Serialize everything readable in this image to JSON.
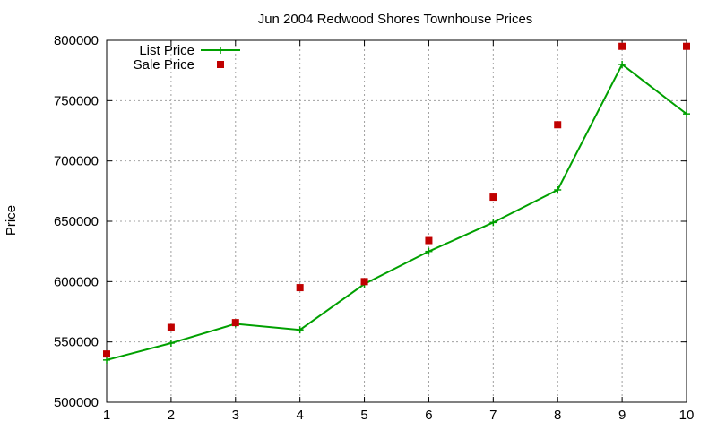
{
  "chart_data": {
    "type": "line",
    "title": "Jun 2004 Redwood Shores Townhouse Prices",
    "xlabel": "",
    "ylabel": "Price",
    "x": [
      1,
      2,
      3,
      4,
      5,
      6,
      7,
      8,
      9,
      10
    ],
    "xlim": [
      1,
      10
    ],
    "ylim": [
      500000,
      800000
    ],
    "xticks": [
      "1",
      "2",
      "3",
      "4",
      "5",
      "6",
      "7",
      "8",
      "9",
      "10"
    ],
    "yticks": [
      "500000",
      "550000",
      "600000",
      "650000",
      "700000",
      "750000",
      "800000"
    ],
    "grid": true,
    "legend_position": "top-left",
    "series": [
      {
        "name": "List Price",
        "style": "line+cross",
        "color": "#00a000",
        "values": [
          535000,
          549000,
          565000,
          560000,
          598000,
          625000,
          649000,
          676000,
          780000,
          739000
        ]
      },
      {
        "name": "Sale Price",
        "style": "square",
        "color": "#c00000",
        "values": [
          540000,
          562000,
          566000,
          595000,
          600000,
          634000,
          670000,
          730000,
          795000,
          795000
        ]
      }
    ]
  }
}
